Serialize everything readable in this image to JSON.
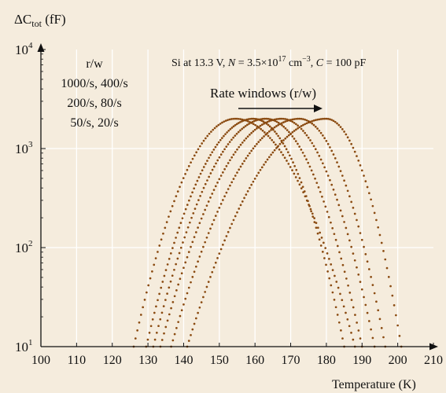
{
  "chart_data": {
    "type": "scatter",
    "ylabel_main": "ΔC",
    "ylabel_sub": "tot",
    "ylabel_unit": " (fF)",
    "xlabel": "Temperature (K)",
    "xlim": [
      100,
      210
    ],
    "ylim": [
      10,
      10000
    ],
    "y_scale": "log",
    "grid": true,
    "x_ticks": [
      "100",
      "110",
      "120",
      "130",
      "140",
      "150",
      "160",
      "170",
      "180",
      "190",
      "200",
      "210"
    ],
    "y_ticks": [
      {
        "base": "10",
        "exp": "1"
      },
      {
        "base": "10",
        "exp": "2"
      },
      {
        "base": "10",
        "exp": "3"
      },
      {
        "base": "10",
        "exp": "4"
      }
    ],
    "legend_title": "r/w",
    "legend_lines": [
      "1000/s, 400/s",
      "200/s, 80/s",
      "50/s, 20/s"
    ],
    "condition_parts": {
      "a": "Si at 13.3 V, ",
      "b": "N",
      "c": " = 3.5×10",
      "d": "17",
      "e": " cm",
      "f": "−3",
      "g": ", ",
      "h": "C",
      "i": " = 100 pF"
    },
    "annotation": "Rate windows (r/w)",
    "series": [
      {
        "peak_x": 154.5,
        "peak_y": 2000,
        "left_x": 126,
        "right_x": 188
      },
      {
        "peak_x": 159.5,
        "peak_y": 2000,
        "left_x": 129.5,
        "right_x": 185
      },
      {
        "peak_x": 163,
        "peak_y": 2000,
        "left_x": 131.5,
        "right_x": 190
      },
      {
        "peak_x": 167.5,
        "peak_y": 2000,
        "left_x": 133.5,
        "right_x": 193.5
      },
      {
        "peak_x": 172.5,
        "peak_y": 2000,
        "left_x": 136.5,
        "right_x": 196.5
      },
      {
        "peak_x": 180,
        "peak_y": 2000,
        "left_x": 141,
        "right_x": 201
      }
    ],
    "marker_color": "#8a4a10"
  }
}
